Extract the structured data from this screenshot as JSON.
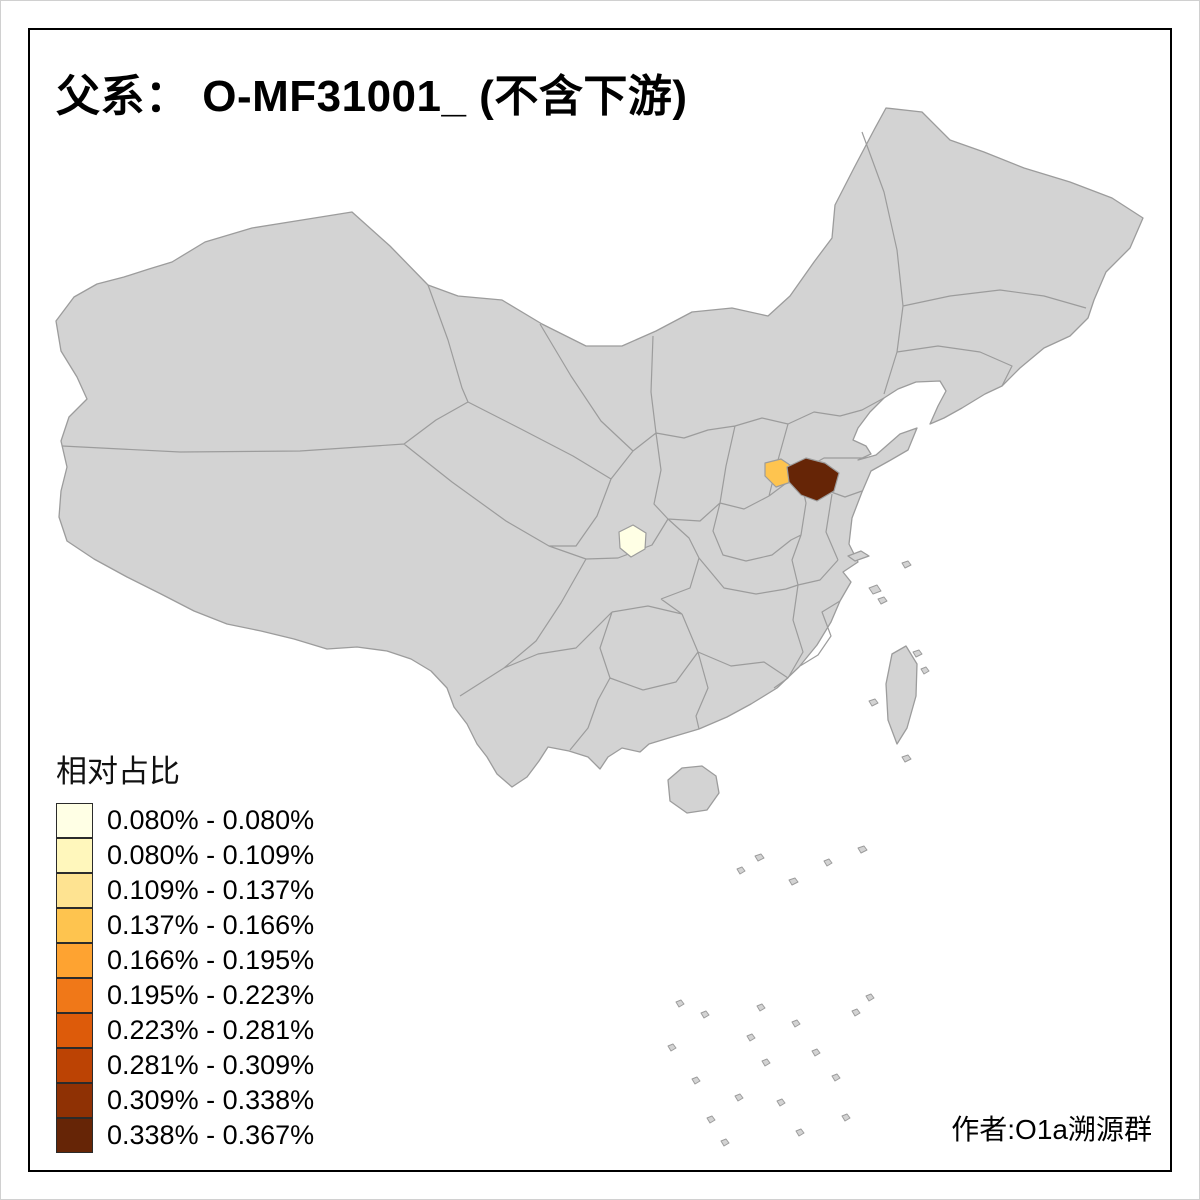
{
  "title": "父系： O-MF31001_ (不含下游)",
  "legend": {
    "title": "相对占比",
    "items": [
      {
        "label": "0.080% - 0.080%",
        "color": "#FFFFE5"
      },
      {
        "label": "0.080% - 0.109%",
        "color": "#FFF7BC"
      },
      {
        "label": "0.109% - 0.137%",
        "color": "#FEE391"
      },
      {
        "label": "0.137% - 0.166%",
        "color": "#FEC44F"
      },
      {
        "label": "0.166% - 0.195%",
        "color": "#FEA331"
      },
      {
        "label": "0.195% - 0.223%",
        "color": "#F07818"
      },
      {
        "label": "0.223% - 0.281%",
        "color": "#DD5B0A"
      },
      {
        "label": "0.281% - 0.309%",
        "color": "#BC4304"
      },
      {
        "label": "0.309% - 0.338%",
        "color": "#8F3104"
      },
      {
        "label": "0.338% - 0.367%",
        "color": "#662506"
      }
    ]
  },
  "author": "作者:O1a溯源群",
  "map": {
    "colors": {
      "land": "#D3D3D3",
      "border": "#9C9C9C",
      "background": "#FFFFFF"
    },
    "highlights": [
      {
        "id": "highlight-1",
        "bin_label": "0.080% - 0.080%",
        "color": "#FFFFE5"
      },
      {
        "id": "highlight-2",
        "bin_label": "0.137% - 0.166%",
        "color": "#FEC44F"
      },
      {
        "id": "highlight-3",
        "bin_label": "0.338% - 0.367%",
        "color": "#662506"
      }
    ]
  },
  "chart_data": {
    "type": "choropleth-map",
    "title": "父系： O-MF31001_ (不含下游)",
    "legend_title": "相对占比",
    "value_range": [
      "0.080%",
      "0.367%"
    ],
    "bins": [
      "0.080% - 0.080%",
      "0.080% - 0.109%",
      "0.109% - 0.137%",
      "0.137% - 0.166%",
      "0.166% - 0.195%",
      "0.195% - 0.223%",
      "0.223% - 0.281%",
      "0.281% - 0.309%",
      "0.309% - 0.338%",
      "0.338% - 0.367%"
    ],
    "highlighted_regions": [
      {
        "bin": "0.080% - 0.080%"
      },
      {
        "bin": "0.137% - 0.166%"
      },
      {
        "bin": "0.338% - 0.367%"
      }
    ],
    "legend_position": "bottom-left"
  }
}
